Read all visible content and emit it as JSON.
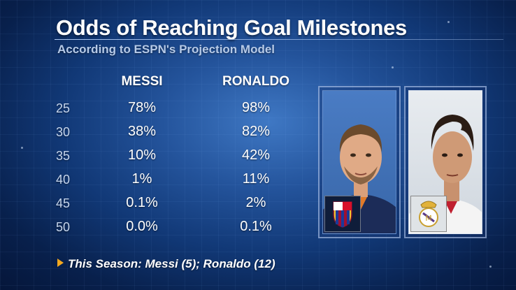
{
  "title": "Odds of Reaching Goal Milestones",
  "subtitle": "According to ESPN's Projection Model",
  "columns": {
    "player1": "MESSI",
    "player2": "RONALDO"
  },
  "rows": [
    {
      "milestone": "25",
      "messi": "78%",
      "ronaldo": "98%"
    },
    {
      "milestone": "30",
      "messi": "38%",
      "ronaldo": "82%"
    },
    {
      "milestone": "35",
      "messi": "10%",
      "ronaldo": "42%"
    },
    {
      "milestone": "40",
      "messi": "1%",
      "ronaldo": "11%"
    },
    {
      "milestone": "45",
      "messi": "0.1%",
      "ronaldo": "2%"
    },
    {
      "milestone": "50",
      "messi": "0.0%",
      "ronaldo": "0.1%"
    }
  ],
  "footnote": "This Season: Messi (5); Ronaldo (12)",
  "colors": {
    "accent_arrow": "#f3a81f",
    "background": "#113876"
  }
}
